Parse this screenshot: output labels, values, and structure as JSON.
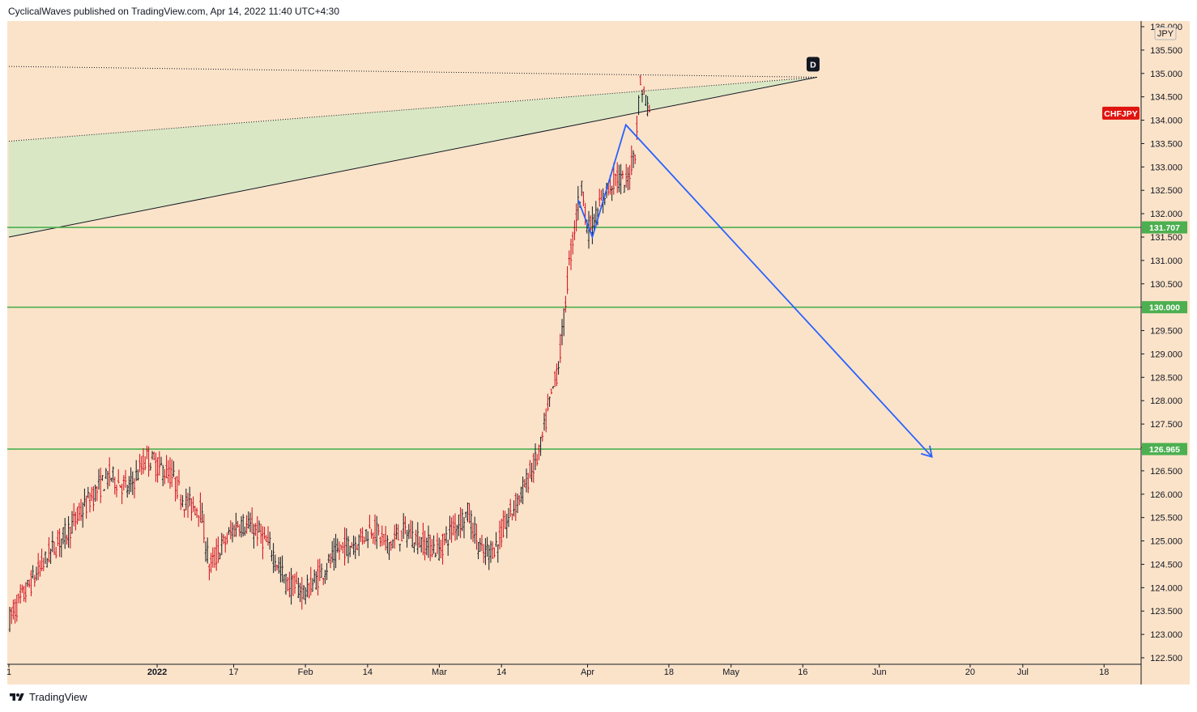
{
  "header": {
    "text": "CyclicalWaves published on TradingView.com, Apr 14, 2022 11:40 UTC+4:30"
  },
  "footer": {
    "brand": "TradingView"
  },
  "colors": {
    "background": "#fbe3c9",
    "candle_up": "#131722",
    "candle_down": "#d1081b",
    "support_line": "#4caf50",
    "projection": "#2962ff",
    "wedge_fill": "#d4e7c3",
    "symbol_badge": "#e0140f"
  },
  "chart_data": {
    "type": "candlestick",
    "symbol": "CHFJPY",
    "currency": "JPY",
    "y_range": [
      122.5,
      136.0
    ],
    "y_ticks": [
      "122.500",
      "123.000",
      "123.500",
      "124.000",
      "124.500",
      "125.000",
      "125.500",
      "126.000",
      "126.500",
      "127.000",
      "127.500",
      "128.000",
      "128.500",
      "129.000",
      "129.500",
      "130.000",
      "130.500",
      "131.000",
      "131.500",
      "132.000",
      "132.500",
      "133.000",
      "133.500",
      "134.000",
      "134.500",
      "135.000",
      "135.500",
      "136.000"
    ],
    "x_labels": [
      {
        "text": "1",
        "date": "2021-12-01"
      },
      {
        "text": "2022",
        "date": "2022-01-01",
        "bold": true
      },
      {
        "text": "17",
        "date": "2022-01-17"
      },
      {
        "text": "Feb",
        "date": "2022-02-01"
      },
      {
        "text": "14",
        "date": "2022-02-14"
      },
      {
        "text": "Mar",
        "date": "2022-03-01"
      },
      {
        "text": "14",
        "date": "2022-03-14"
      },
      {
        "text": "Apr",
        "date": "2022-04-01"
      },
      {
        "text": "18",
        "date": "2022-04-18"
      },
      {
        "text": "May",
        "date": "2022-05-01"
      },
      {
        "text": "16",
        "date": "2022-05-16"
      },
      {
        "text": "Jun",
        "date": "2022-06-01"
      },
      {
        "text": "20",
        "date": "2022-06-20"
      },
      {
        "text": "Jul",
        "date": "2022-07-01"
      },
      {
        "text": "18",
        "date": "2022-07-18"
      }
    ],
    "price_trend": [
      [
        "2021-12-01",
        123.3
      ],
      [
        "2021-12-05",
        124.0
      ],
      [
        "2021-12-10",
        124.8
      ],
      [
        "2021-12-14",
        125.3
      ],
      [
        "2021-12-18",
        125.9
      ],
      [
        "2021-12-22",
        126.4
      ],
      [
        "2021-12-26",
        126.1
      ],
      [
        "2021-12-30",
        126.8
      ],
      [
        "2022-01-01",
        126.6
      ],
      [
        "2022-01-04",
        126.4
      ],
      [
        "2022-01-07",
        125.8
      ],
      [
        "2022-01-10",
        125.7
      ],
      [
        "2022-01-12",
        124.4
      ],
      [
        "2022-01-14",
        124.8
      ],
      [
        "2022-01-18",
        125.4
      ],
      [
        "2022-01-22",
        125.2
      ],
      [
        "2022-01-25",
        124.8
      ],
      [
        "2022-01-28",
        124.1
      ],
      [
        "2022-02-01",
        123.9
      ],
      [
        "2022-02-05",
        124.4
      ],
      [
        "2022-02-08",
        124.8
      ],
      [
        "2022-02-12",
        125.0
      ],
      [
        "2022-02-15",
        125.3
      ],
      [
        "2022-02-18",
        124.9
      ],
      [
        "2022-02-22",
        125.2
      ],
      [
        "2022-02-25",
        125.0
      ],
      [
        "2022-03-01",
        124.8
      ],
      [
        "2022-03-04",
        125.3
      ],
      [
        "2022-03-07",
        125.6
      ],
      [
        "2022-03-10",
        124.7
      ],
      [
        "2022-03-13",
        124.9
      ],
      [
        "2022-03-16",
        125.6
      ],
      [
        "2022-03-19",
        126.2
      ],
      [
        "2022-03-22",
        126.9
      ],
      [
        "2022-03-24",
        127.9
      ],
      [
        "2022-03-26",
        128.8
      ],
      [
        "2022-03-27",
        129.7
      ],
      [
        "2022-03-28",
        130.8
      ],
      [
        "2022-03-29",
        131.5
      ],
      [
        "2022-03-30",
        132.2
      ],
      [
        "2022-03-31",
        132.6
      ],
      [
        "2022-04-01",
        131.6
      ],
      [
        "2022-04-03",
        132.0
      ],
      [
        "2022-04-05",
        132.5
      ],
      [
        "2022-04-07",
        132.8
      ],
      [
        "2022-04-09",
        132.6
      ],
      [
        "2022-04-11",
        133.4
      ],
      [
        "2022-04-12",
        134.8
      ],
      [
        "2022-04-13",
        134.5
      ],
      [
        "2022-04-14",
        134.2
      ]
    ],
    "horizontal_levels": [
      {
        "value": 131.707,
        "label": "131.707"
      },
      {
        "value": 130.0,
        "label": "130.000"
      },
      {
        "value": 126.965,
        "label": "126.965"
      }
    ],
    "symbol_badge": {
      "text": "CHFJPY",
      "value": 134.15
    },
    "wedge": {
      "upper": [
        [
          "2021-12-01",
          135.15
        ],
        [
          "2022-05-19",
          134.92
        ]
      ],
      "middle": [
        [
          "2021-12-01",
          133.55
        ],
        [
          "2022-05-19",
          134.92
        ]
      ],
      "lower": [
        [
          "2021-12-01",
          131.5
        ],
        [
          "2022-05-19",
          134.92
        ]
      ],
      "apex_label": "D"
    },
    "projection": [
      [
        "2022-03-30",
        132.3
      ],
      [
        "2022-04-02",
        131.5
      ],
      [
        "2022-04-09",
        133.9
      ],
      [
        "2022-06-12",
        126.8
      ]
    ]
  }
}
